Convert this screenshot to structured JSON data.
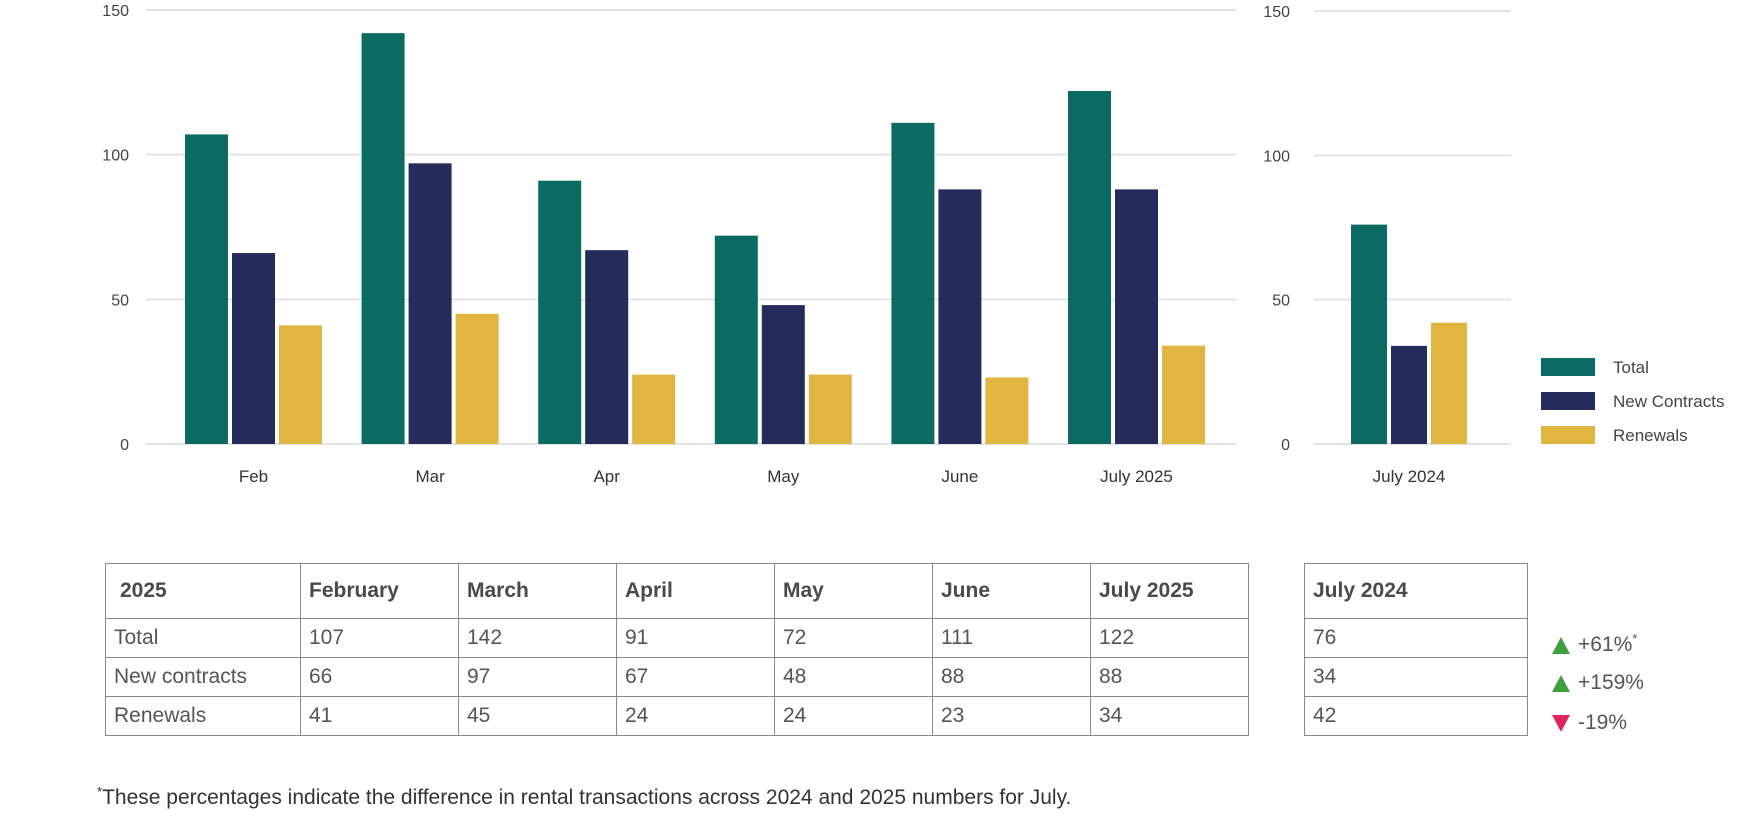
{
  "chart_data": [
    {
      "type": "bar",
      "categories": [
        "Feb",
        "Mar",
        "Apr",
        "May",
        "June",
        "July 2025"
      ],
      "series": [
        {
          "name": "Total",
          "values": [
            107,
            142,
            91,
            72,
            111,
            122
          ]
        },
        {
          "name": "New Contracts",
          "values": [
            66,
            97,
            67,
            48,
            88,
            88
          ]
        },
        {
          "name": "Renewals",
          "values": [
            41,
            45,
            24,
            24,
            23,
            34
          ]
        }
      ],
      "ylim": [
        0,
        150
      ],
      "yticks": [
        0,
        50,
        100,
        150
      ],
      "grid": true
    },
    {
      "type": "bar",
      "categories": [
        "July 2024"
      ],
      "series": [
        {
          "name": "Total",
          "values": [
            76
          ]
        },
        {
          "name": "New Contracts",
          "values": [
            34
          ]
        },
        {
          "name": "Renewals",
          "values": [
            42
          ]
        }
      ],
      "ylim": [
        0,
        150
      ],
      "yticks": [
        0,
        50,
        100,
        150
      ],
      "grid": true,
      "legend": "right"
    }
  ],
  "colors": {
    "Total": "#0b6b63",
    "New Contracts": "#252b5a",
    "Renewals": "#e0b540"
  },
  "legend": [
    {
      "label": "Total"
    },
    {
      "label": "New Contracts"
    },
    {
      "label": "Renewals"
    }
  ],
  "table": {
    "header": [
      "2025",
      "February",
      "March",
      "April",
      "May",
      "June",
      "July 2025"
    ],
    "rows": [
      [
        "Total",
        "107",
        "142",
        "91",
        "72",
        "111",
        "122"
      ],
      [
        "New contracts",
        "66",
        "97",
        "67",
        "48",
        "88",
        "88"
      ],
      [
        "Renewals",
        "41",
        "45",
        "24",
        "24",
        "23",
        "34"
      ]
    ]
  },
  "july2024_table": {
    "header": "July 2024",
    "rows": [
      "76",
      "34",
      "42"
    ]
  },
  "changes": [
    {
      "text": "+61%",
      "direction": "up",
      "asterisk": "*"
    },
    {
      "text": "+159%",
      "direction": "up",
      "asterisk": ""
    },
    {
      "text": "-19%",
      "direction": "down",
      "asterisk": ""
    }
  ],
  "footnote": {
    "asterisk": "*",
    "text": "These percentages indicate the difference in rental transactions across 2024 and 2025 numbers for July."
  }
}
